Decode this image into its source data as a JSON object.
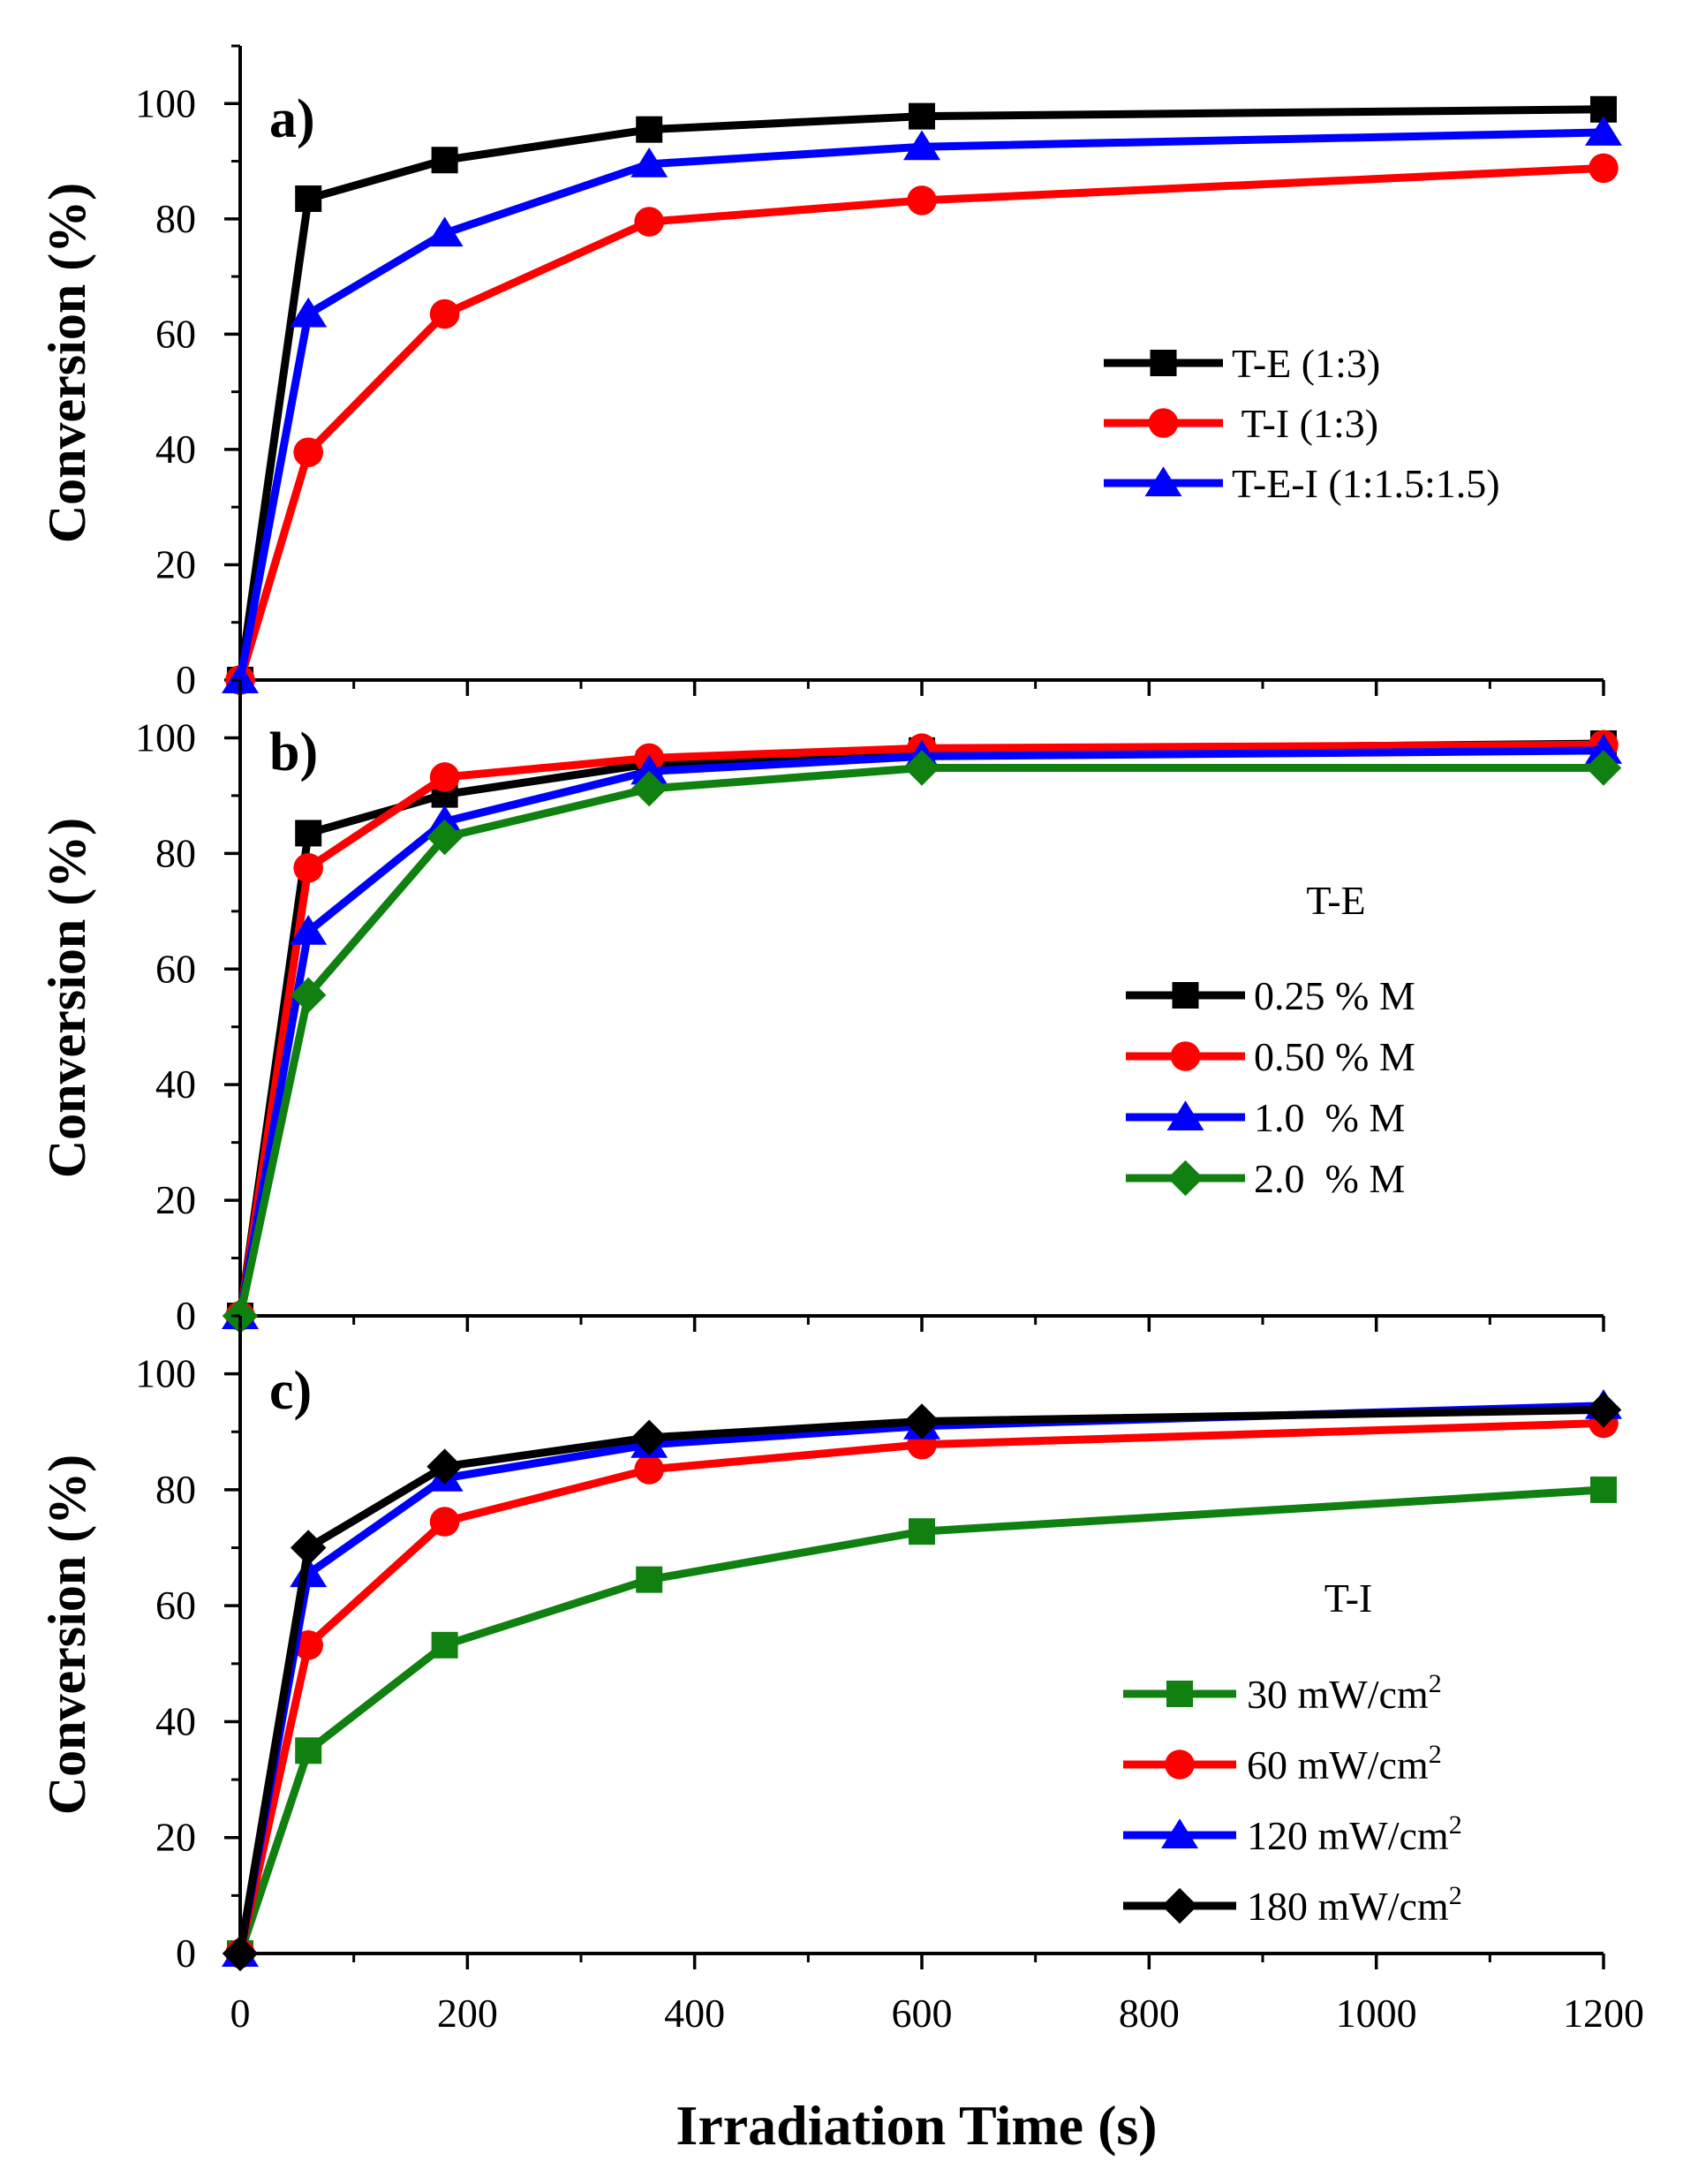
{
  "figure": {
    "xlabel": "Irradiation Time (s)",
    "ylabel": "Conversion (%)"
  },
  "chart_data": [
    {
      "type": "line",
      "panel": "a)",
      "title": "",
      "xlabel": "Irradiation Time (s)",
      "ylabel": "Conversion (%)",
      "xlim": [
        0,
        1200
      ],
      "ylim": [
        0,
        110
      ],
      "x_ticks": [
        0,
        200,
        400,
        600,
        800,
        1000,
        1200
      ],
      "y_ticks": [
        0,
        20,
        40,
        60,
        80,
        100
      ],
      "legend_title": "",
      "legend_position": "center-right",
      "x": [
        0,
        60,
        180,
        360,
        600,
        1200
      ],
      "series": [
        {
          "name": "T-E (1:3)",
          "color": "#000000",
          "marker": "square",
          "values": [
            0,
            83.5,
            90.2,
            95.5,
            97.8,
            99.0
          ]
        },
        {
          "name": " T-I (1:3)",
          "color": "#ff0000",
          "marker": "circle",
          "values": [
            0,
            39.5,
            63.5,
            79.5,
            83.2,
            88.8
          ]
        },
        {
          "name": "T-E-I (1:1.5:1.5)",
          "color": "#0000ff",
          "marker": "triangle",
          "values": [
            0,
            63.5,
            77.5,
            89.5,
            92.5,
            95.0
          ]
        }
      ]
    },
    {
      "type": "line",
      "panel": "b)",
      "title": "",
      "xlabel": "Irradiation Time (s)",
      "ylabel": "Conversion (%)",
      "xlim": [
        0,
        1200
      ],
      "ylim": [
        0,
        110
      ],
      "x_ticks": [
        0,
        200,
        400,
        600,
        800,
        1000,
        1200
      ],
      "y_ticks": [
        0,
        20,
        40,
        60,
        80,
        100
      ],
      "legend_title": "T-E",
      "legend_position": "center-right",
      "x": [
        0,
        60,
        180,
        360,
        600,
        1200
      ],
      "series": [
        {
          "name": "0.25 % M",
          "color": "#000000",
          "marker": "square",
          "values": [
            0,
            83.5,
            90.2,
            95.5,
            97.8,
            99.0
          ]
        },
        {
          "name": "0.50 % M",
          "color": "#ff0000",
          "marker": "circle",
          "values": [
            0,
            77.5,
            93.2,
            96.5,
            98.2,
            98.8
          ]
        },
        {
          "name": "1.0  % M",
          "color": "#0000ff",
          "marker": "triangle",
          "values": [
            0,
            66.5,
            85.5,
            94.2,
            96.8,
            97.8
          ]
        },
        {
          "name": "2.0  % M",
          "color": "#108010",
          "marker": "diamond",
          "values": [
            0,
            55.5,
            82.8,
            91.2,
            94.8,
            94.8
          ]
        }
      ]
    },
    {
      "type": "line",
      "panel": "c)",
      "title": "",
      "xlabel": "Irradiation Time (s)",
      "ylabel": "Conversion (%)",
      "xlim": [
        0,
        1200
      ],
      "ylim": [
        0,
        110
      ],
      "x_ticks": [
        0,
        200,
        400,
        600,
        800,
        1000,
        1200
      ],
      "y_ticks": [
        0,
        20,
        40,
        60,
        80,
        100
      ],
      "legend_title": "T-I",
      "legend_position": "bottom-right",
      "x": [
        0,
        60,
        180,
        360,
        600,
        1200
      ],
      "series": [
        {
          "name": "30 mW/cm",
          "superscript": "2",
          "color": "#108010",
          "marker": "square",
          "values": [
            0,
            35.0,
            53.2,
            64.5,
            72.8,
            80.0
          ]
        },
        {
          "name": "60 mW/cm",
          "superscript": "2",
          "color": "#ff0000",
          "marker": "circle",
          "values": [
            0,
            53.2,
            74.5,
            83.5,
            87.8,
            91.5
          ]
        },
        {
          "name": "120 mW/cm",
          "superscript": "2",
          "color": "#0000ff",
          "marker": "triangle",
          "values": [
            0,
            65.5,
            82.0,
            87.8,
            91.0,
            94.5
          ]
        },
        {
          "name": "180 mW/cm",
          "superscript": "2",
          "color": "#000000",
          "marker": "diamond",
          "values": [
            0,
            70.0,
            84.0,
            89.0,
            91.8,
            93.8
          ]
        }
      ]
    }
  ]
}
